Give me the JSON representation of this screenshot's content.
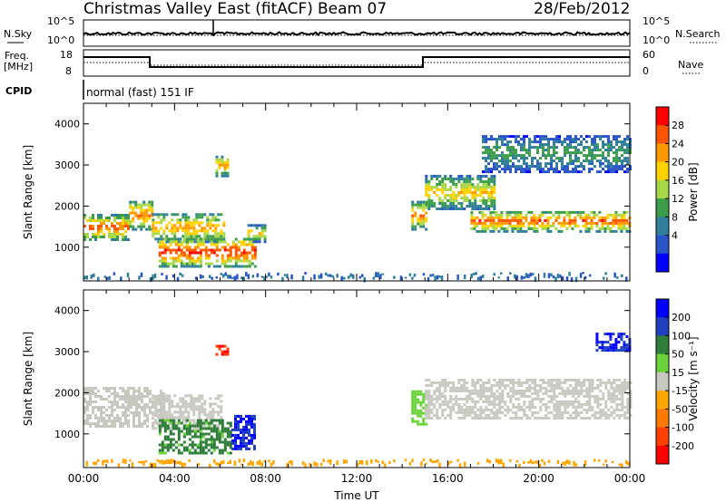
{
  "header": {
    "title": "Christmas Valley East (fitACF)",
    "beam": "Beam 07",
    "date": "28/Feb/2012"
  },
  "panels": {
    "nsky": {
      "label": "N.Sky",
      "yticks": [
        "10^5",
        "10^0"
      ],
      "right_label": "N.Search",
      "right_yticks": [
        "10^5",
        "10^0"
      ]
    },
    "freq": {
      "label_line1": "Freq.",
      "label_line2": "[MHz]",
      "yticks": [
        "18",
        "8"
      ],
      "right_label": "Nave",
      "right_yticks": [
        "60",
        "0"
      ]
    },
    "cpid": {
      "label": "CPID",
      "value": "normal (fast) 151 IF"
    }
  },
  "colorbars": {
    "power": {
      "label": "Power [dB]",
      "ticks": [
        "28",
        "24",
        "20",
        "16",
        "12",
        "8",
        "4"
      ],
      "colors": [
        "#ff0000",
        "#ff5500",
        "#ff9900",
        "#ffd200",
        "#a8d84a",
        "#3c9e4a",
        "#2f7f9a",
        "#2a55c8",
        "#0000ff"
      ]
    },
    "velocity": {
      "label": "Velocity [m s⁻¹]",
      "ticks": [
        "200",
        "100",
        "50",
        "15",
        "-15",
        "-50",
        "-100",
        "-200"
      ],
      "colors": [
        "#0000ff",
        "#1f3fbf",
        "#2e7d3a",
        "#6ad33a",
        "#c8c8c0",
        "#ffa500",
        "#ff7a00",
        "#ff4000",
        "#ff0000"
      ]
    }
  },
  "chart_data": [
    {
      "type": "heatmap",
      "name": "power",
      "ylabel": "Slant Range [km]",
      "yticks": [
        1000,
        2000,
        3000,
        4000
      ],
      "ylim": [
        180,
        4500
      ],
      "xlim": [
        0,
        24
      ],
      "echo_bands": [
        {
          "t0": 0.0,
          "t1": 2.0,
          "r0": 1150,
          "r1": 1750,
          "peak": 26
        },
        {
          "t0": 2.0,
          "t1": 3.0,
          "r0": 1400,
          "r1": 2100,
          "peak": 24
        },
        {
          "t0": 3.0,
          "t1": 6.2,
          "r0": 1100,
          "r1": 1800,
          "peak": 22
        },
        {
          "t0": 3.3,
          "t1": 7.5,
          "r0": 500,
          "r1": 1200,
          "peak": 28
        },
        {
          "t0": 5.8,
          "t1": 6.3,
          "r0": 2700,
          "r1": 3200,
          "peak": 22
        },
        {
          "t0": 7.2,
          "t1": 8.0,
          "r0": 1100,
          "r1": 1500,
          "peak": 20
        },
        {
          "t0": 14.4,
          "t1": 15.0,
          "r0": 1400,
          "r1": 2100,
          "peak": 24
        },
        {
          "t0": 15.0,
          "t1": 18.0,
          "r0": 1900,
          "r1": 2700,
          "peak": 20
        },
        {
          "t0": 17.0,
          "t1": 24.0,
          "r0": 1350,
          "r1": 1850,
          "peak": 26
        },
        {
          "t0": 17.5,
          "t1": 24.0,
          "r0": 2800,
          "r1": 3700,
          "peak": 12
        }
      ]
    },
    {
      "type": "heatmap",
      "name": "velocity",
      "ylabel": "Slant Range [km]",
      "yticks": [
        1000,
        2000,
        3000,
        4000
      ],
      "ylim": [
        180,
        4500
      ],
      "xlim": [
        0,
        24
      ],
      "xlabel": "Time UT",
      "xticks": [
        "00:00",
        "04:00",
        "08:00",
        "12:00",
        "16:00",
        "20:00",
        "00:00"
      ],
      "echo_bands": [
        {
          "t0": 0.0,
          "t1": 3.5,
          "r0": 1150,
          "r1": 2100,
          "velocity": 0
        },
        {
          "t0": 3.0,
          "t1": 6.0,
          "r0": 1100,
          "r1": 1900,
          "velocity": 0
        },
        {
          "t0": 3.3,
          "t1": 6.5,
          "r0": 500,
          "r1": 1300,
          "velocity": 60
        },
        {
          "t0": 6.5,
          "t1": 7.5,
          "r0": 600,
          "r1": 1400,
          "velocity": 200
        },
        {
          "t0": 5.8,
          "t1": 6.3,
          "r0": 2900,
          "r1": 3100,
          "velocity": -200
        },
        {
          "t0": 14.4,
          "t1": 15.0,
          "r0": 1200,
          "r1": 2000,
          "velocity": 30
        },
        {
          "t0": 15.0,
          "t1": 24.0,
          "r0": 1350,
          "r1": 2300,
          "velocity": 0
        },
        {
          "t0": 22.5,
          "t1": 24.0,
          "r0": 3000,
          "r1": 3400,
          "velocity": 200
        }
      ]
    }
  ]
}
